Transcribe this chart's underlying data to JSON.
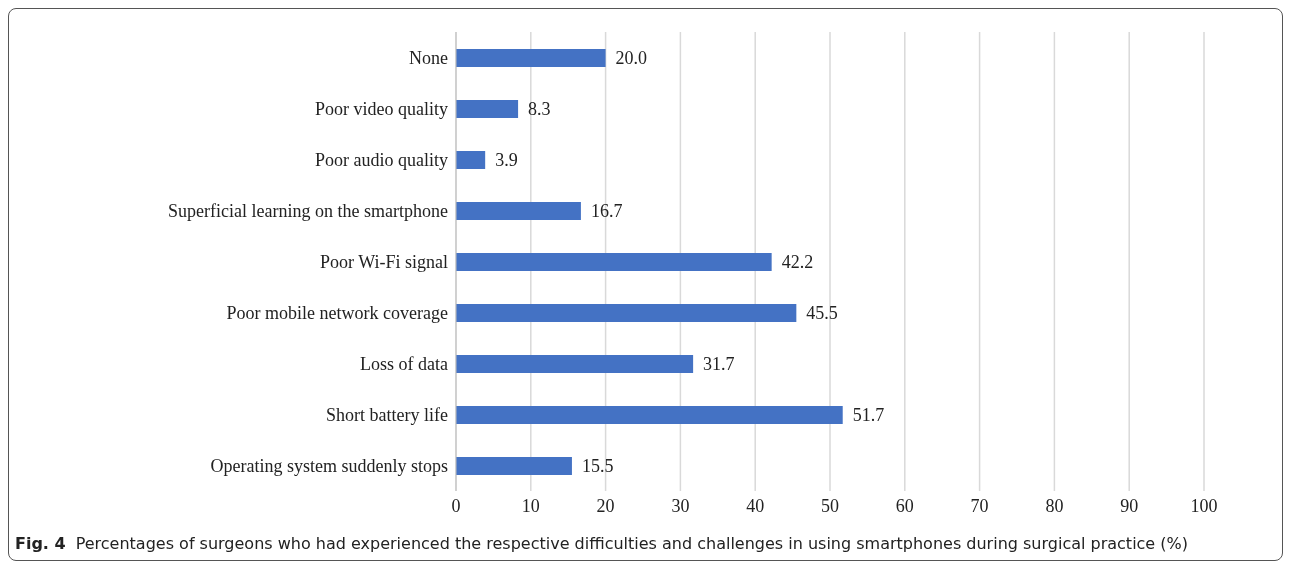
{
  "chart_data": {
    "type": "bar",
    "orientation": "horizontal",
    "categories": [
      "None",
      "Poor video quality",
      "Poor audio quality",
      "Superficial learning on the smartphone",
      "Poor Wi-Fi signal",
      "Poor mobile network coverage",
      "Loss of data",
      "Short battery life",
      "Operating system suddenly stops"
    ],
    "values": [
      20.0,
      8.3,
      3.9,
      16.7,
      42.2,
      45.5,
      31.7,
      51.7,
      15.5
    ],
    "value_labels": [
      "20.0",
      "8.3",
      "3.9",
      "16.7",
      "42.2",
      "45.5",
      "31.7",
      "51.7",
      "15.5"
    ],
    "color": "#4472c4",
    "xlim": [
      0,
      100
    ],
    "xticks": [
      0,
      10,
      20,
      30,
      40,
      50,
      60,
      70,
      80,
      90,
      100
    ],
    "grid": "x",
    "legend": false,
    "annotations": [
      "Fig. 4",
      "Percentages of surgeons who had experienced the respective difficulties and challenges in using smartphones during surgical practice (%)"
    ]
  }
}
